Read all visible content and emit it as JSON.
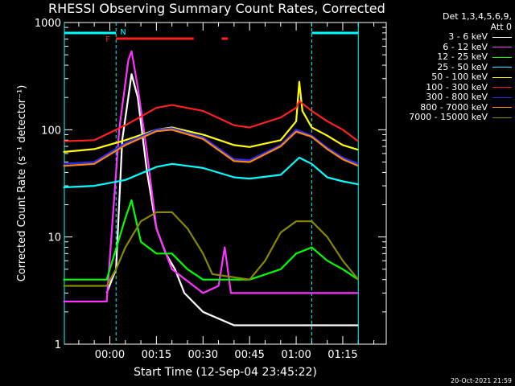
{
  "title": "RHESSI Observing Summary Count Rates, Corrected",
  "timestamp": "20-Oct-2021 21:59",
  "legend_header": [
    "Det 1,3,4,5,6,9,",
    "Att 0"
  ],
  "flags": {
    "flare": "F",
    "night": "N"
  },
  "chart_data": {
    "type": "line",
    "title": "RHESSI Observing Summary Count Rates, Corrected",
    "xlabel": "Start Time (12-Sep-04 23:45:22)",
    "ylabel": "Corrected Count Rate (s⁻¹ detector⁻¹)",
    "yscale": "log",
    "ylim": [
      1,
      1000
    ],
    "xlim": [
      "23:45:22",
      "01:29:00"
    ],
    "x_ticks": [
      "00:00",
      "00:15",
      "00:30",
      "00:45",
      "01:00",
      "01:15"
    ],
    "y_ticks": [
      "1",
      "10",
      "100",
      "1000"
    ],
    "legend_position": "right",
    "series": [
      {
        "name": "3 - 6 keV",
        "color": "#ffffff",
        "points": [
          [
            "23:59",
            3
          ],
          [
            "00:02",
            5
          ],
          [
            "00:04",
            80
          ],
          [
            "00:07",
            330
          ],
          [
            "00:09",
            200
          ],
          [
            "00:12",
            40
          ],
          [
            "00:15",
            12
          ],
          [
            "00:18",
            7
          ],
          [
            "00:21",
            5
          ],
          [
            "00:24",
            3
          ],
          [
            "00:30",
            2
          ],
          [
            "00:40",
            1.5
          ],
          [
            "00:50",
            1.5
          ],
          [
            "01:00",
            1.5
          ],
          [
            "01:10",
            1.5
          ],
          [
            "01:20",
            1.5
          ]
        ]
      },
      {
        "name": "6 - 12 keV",
        "color": "#ff33ff",
        "points": [
          [
            "23:45",
            2.5
          ],
          [
            "23:59",
            2.5
          ],
          [
            "00:03",
            100
          ],
          [
            "00:06",
            450
          ],
          [
            "00:07",
            540
          ],
          [
            "00:09",
            250
          ],
          [
            "00:12",
            60
          ],
          [
            "00:15",
            12
          ],
          [
            "00:20",
            5
          ],
          [
            "00:30",
            3
          ],
          [
            "00:35",
            3.5
          ],
          [
            "00:37",
            8
          ],
          [
            "00:39",
            3
          ],
          [
            "00:45",
            3
          ],
          [
            "01:00",
            3
          ],
          [
            "01:10",
            3
          ],
          [
            "01:20",
            3
          ]
        ]
      },
      {
        "name": "12 - 25 keV",
        "color": "#00ff00",
        "points": [
          [
            "23:45",
            4
          ],
          [
            "23:59",
            4
          ],
          [
            "00:05",
            15
          ],
          [
            "00:07",
            22
          ],
          [
            "00:10",
            9
          ],
          [
            "00:15",
            7
          ],
          [
            "00:20",
            7
          ],
          [
            "00:25",
            5
          ],
          [
            "00:30",
            4
          ],
          [
            "00:45",
            4
          ],
          [
            "00:55",
            5
          ],
          [
            "01:00",
            7
          ],
          [
            "01:05",
            8
          ],
          [
            "01:10",
            6
          ],
          [
            "01:15",
            5
          ],
          [
            "01:20",
            4
          ]
        ]
      },
      {
        "name": "25 - 50 keV",
        "color": "#00ffff",
        "points": [
          [
            "23:45",
            29
          ],
          [
            "23:55",
            30
          ],
          [
            "00:05",
            34
          ],
          [
            "00:15",
            45
          ],
          [
            "00:20",
            48
          ],
          [
            "00:30",
            44
          ],
          [
            "00:40",
            36
          ],
          [
            "00:45",
            35
          ],
          [
            "00:55",
            38
          ],
          [
            "01:01",
            55
          ],
          [
            "01:05",
            48
          ],
          [
            "01:10",
            36
          ],
          [
            "01:15",
            33
          ],
          [
            "01:20",
            31
          ]
        ]
      },
      {
        "name": "50 - 100 keV",
        "color": "#ffff00",
        "points": [
          [
            "23:45",
            62
          ],
          [
            "23:55",
            66
          ],
          [
            "00:05",
            80
          ],
          [
            "00:15",
            100
          ],
          [
            "00:20",
            105
          ],
          [
            "00:30",
            90
          ],
          [
            "00:40",
            72
          ],
          [
            "00:45",
            69
          ],
          [
            "00:55",
            80
          ],
          [
            "01:00",
            120
          ],
          [
            "01:01",
            280
          ],
          [
            "01:02",
            150
          ],
          [
            "01:05",
            105
          ],
          [
            "01:10",
            88
          ],
          [
            "01:15",
            72
          ],
          [
            "01:20",
            65
          ]
        ]
      },
      {
        "name": "100 - 300 keV",
        "color": "#ff2020",
        "points": [
          [
            "23:45",
            78
          ],
          [
            "23:55",
            80
          ],
          [
            "00:05",
            110
          ],
          [
            "00:15",
            160
          ],
          [
            "00:20",
            170
          ],
          [
            "00:30",
            150
          ],
          [
            "00:40",
            110
          ],
          [
            "00:45",
            105
          ],
          [
            "00:55",
            130
          ],
          [
            "01:00",
            160
          ],
          [
            "01:01",
            185
          ],
          [
            "01:05",
            150
          ],
          [
            "01:10",
            120
          ],
          [
            "01:15",
            100
          ],
          [
            "01:20",
            78
          ]
        ]
      },
      {
        "name": "300 - 800 keV",
        "color": "#2b2bff",
        "points": [
          [
            "23:45",
            48
          ],
          [
            "23:55",
            50
          ],
          [
            "00:05",
            75
          ],
          [
            "00:15",
            100
          ],
          [
            "00:20",
            103
          ],
          [
            "00:30",
            85
          ],
          [
            "00:40",
            53
          ],
          [
            "00:45",
            52
          ],
          [
            "00:55",
            72
          ],
          [
            "01:00",
            100
          ],
          [
            "01:05",
            88
          ],
          [
            "01:10",
            68
          ],
          [
            "01:15",
            55
          ],
          [
            "01:20",
            48
          ]
        ]
      },
      {
        "name": "800 - 7000 keV",
        "color": "#ff8800",
        "points": [
          [
            "23:45",
            46
          ],
          [
            "23:55",
            48
          ],
          [
            "00:05",
            72
          ],
          [
            "00:15",
            97
          ],
          [
            "00:20",
            100
          ],
          [
            "00:30",
            82
          ],
          [
            "00:40",
            51
          ],
          [
            "00:45",
            50
          ],
          [
            "00:55",
            70
          ],
          [
            "01:00",
            96
          ],
          [
            "01:05",
            86
          ],
          [
            "01:10",
            66
          ],
          [
            "01:15",
            53
          ],
          [
            "01:20",
            46
          ]
        ]
      },
      {
        "name": "7000 - 15000 keV",
        "color": "#888800",
        "points": [
          [
            "23:45",
            3.5
          ],
          [
            "23:59",
            3.5
          ],
          [
            "00:02",
            5
          ],
          [
            "00:05",
            8
          ],
          [
            "00:10",
            14
          ],
          [
            "00:15",
            17
          ],
          [
            "00:20",
            17
          ],
          [
            "00:25",
            12
          ],
          [
            "00:30",
            7
          ],
          [
            "00:33",
            4.5
          ],
          [
            "00:45",
            4
          ],
          [
            "00:50",
            6
          ],
          [
            "00:55",
            11
          ],
          [
            "01:00",
            14
          ],
          [
            "01:05",
            14
          ],
          [
            "01:10",
            10
          ],
          [
            "01:15",
            6
          ],
          [
            "01:20",
            4
          ]
        ]
      }
    ],
    "annotations": {
      "night_intervals": [
        [
          "23:45",
          "00:02"
        ],
        [
          "01:05",
          "01:20"
        ]
      ],
      "flare_intervals": [
        [
          "00:02",
          "00:27"
        ],
        [
          "00:36",
          "00:38"
        ]
      ],
      "flare_label": "F",
      "night_label": "N"
    }
  }
}
